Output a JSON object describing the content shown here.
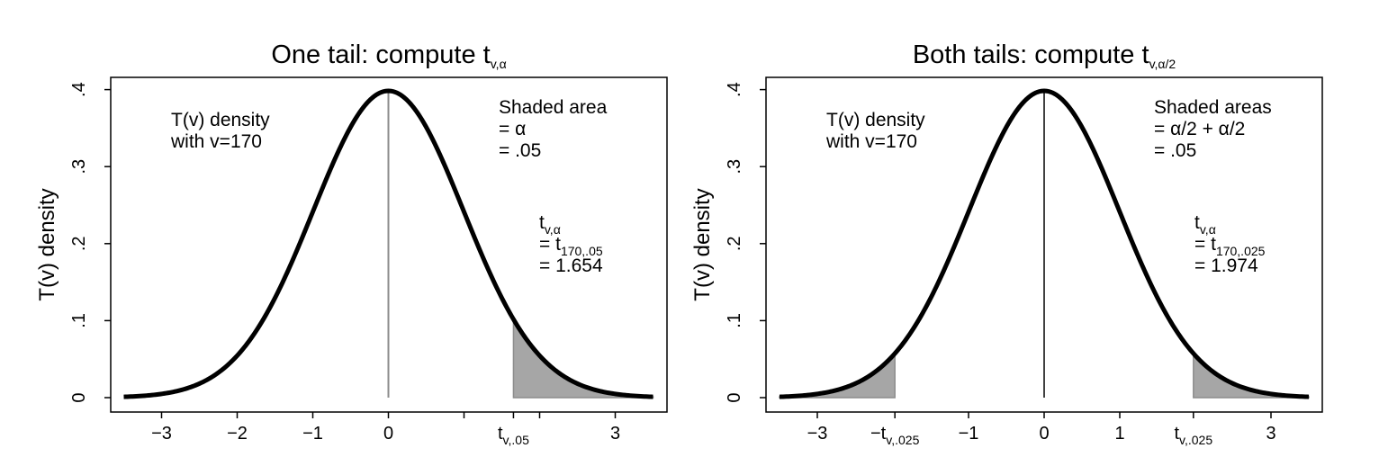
{
  "chart_data": [
    {
      "type": "area",
      "title": "One tail: compute t",
      "title_sub": "v,α",
      "ylabel": "T(v) density",
      "xlabel": "",
      "df": 170,
      "xlim": [
        -3.6,
        3.6
      ],
      "ylim": [
        0,
        0.4
      ],
      "grid": false,
      "y_ticks": [
        {
          "value": 0,
          "label": "0"
        },
        {
          "value": 0.1,
          "label": ".1"
        },
        {
          "value": 0.2,
          "label": ".2"
        },
        {
          "value": 0.3,
          "label": ".3"
        },
        {
          "value": 0.4,
          "label": ".4"
        }
      ],
      "x_ticks": [
        {
          "value": -3,
          "label": "−3"
        },
        {
          "value": -2,
          "label": "−2"
        },
        {
          "value": -1,
          "label": "−1"
        },
        {
          "value": 0,
          "label": "0"
        },
        {
          "value": 1,
          "label": ""
        },
        {
          "value": 1.654,
          "label": "t",
          "sub": "v,.05"
        },
        {
          "value": 2,
          "label": ""
        },
        {
          "value": 3,
          "label": "3"
        }
      ],
      "shaded": [
        [
          1.654,
          3.5
        ]
      ],
      "center_line": 0,
      "center_line_color": "#8c8c8c",
      "curve_color": "#000000",
      "shade_color": "#a6a6a6",
      "density_label": [
        "T(v) density",
        "with v=170"
      ],
      "area_label": {
        "lines": [
          "Shaded area",
          "= α",
          "= .05"
        ]
      },
      "critical_label": {
        "line1": {
          "main": "t",
          "sub": "v,α"
        },
        "line2": {
          "main": "= t",
          "sub": "170,.05"
        },
        "line3": "= 1.654"
      }
    },
    {
      "type": "area",
      "title": "Both tails: compute t",
      "title_sub": "v,α/2",
      "ylabel": "T(v) density",
      "xlabel": "",
      "df": 170,
      "xlim": [
        -3.6,
        3.6
      ],
      "ylim": [
        0,
        0.4
      ],
      "grid": false,
      "y_ticks": [
        {
          "value": 0,
          "label": "0"
        },
        {
          "value": 0.1,
          "label": ".1"
        },
        {
          "value": 0.2,
          "label": ".2"
        },
        {
          "value": 0.3,
          "label": ".3"
        },
        {
          "value": 0.4,
          "label": ".4"
        }
      ],
      "x_ticks": [
        {
          "value": -3,
          "label": "−3"
        },
        {
          "value": -1.974,
          "label": "−t",
          "sub": "v,.025"
        },
        {
          "value": -1,
          "label": "−1"
        },
        {
          "value": 0,
          "label": "0"
        },
        {
          "value": 1,
          "label": "1"
        },
        {
          "value": 1.974,
          "label": "t",
          "sub": "v,.025"
        },
        {
          "value": 3,
          "label": "3"
        }
      ],
      "shaded": [
        [
          -3.5,
          -1.974
        ],
        [
          1.974,
          3.5
        ]
      ],
      "center_line": 0,
      "center_line_color": "#404040",
      "curve_color": "#000000",
      "shade_color": "#a6a6a6",
      "density_label": [
        "T(v) density",
        "with v=170"
      ],
      "area_label": {
        "lines": [
          "Shaded areas",
          "= α/2 + α/2",
          "= .05"
        ]
      },
      "critical_label": {
        "line1": {
          "main": "t",
          "sub": "v,α"
        },
        "line2": {
          "main": "= t",
          "sub": "170,.025"
        },
        "line3": "= 1.974"
      }
    }
  ]
}
